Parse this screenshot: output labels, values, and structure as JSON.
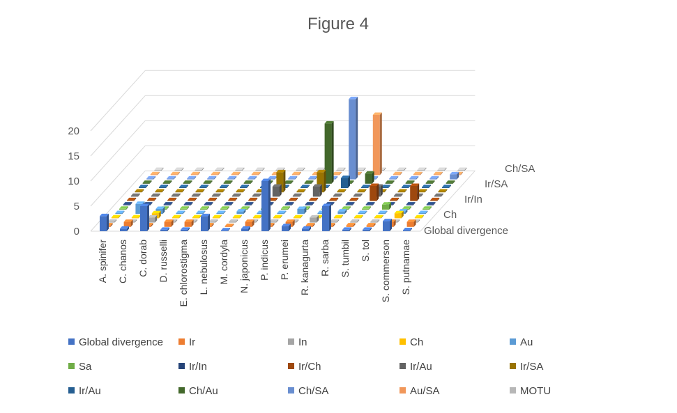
{
  "chart_data": {
    "type": "bar",
    "subtype": "3d-column",
    "title": "Figure 4",
    "categories": [
      "A. spinifer",
      "C. chanos",
      "C. dorab",
      "D. russelli",
      "E. chlorostigma",
      "L. nebulosus",
      "M. cordyla",
      "N. japonicus",
      "P. indicus",
      "P. erumei",
      "R. kanagurta",
      "R. sarba",
      "S. tumbil",
      "S. tol",
      "S. commerson",
      "S. putnamae"
    ],
    "depth_labels": [
      "Global divergence",
      "Ch",
      "Ir/In",
      "Ir/SA",
      "Ch/SA"
    ],
    "y_ticks": [
      "0",
      "5",
      "10",
      "15",
      "20"
    ],
    "ylim": [
      0,
      20
    ],
    "legend_position": "bottom",
    "series": [
      {
        "name": "Global divergence",
        "color": "#4472c4",
        "values": [
          3,
          0.5,
          5,
          0.3,
          0.3,
          3,
          0.1,
          0.5,
          10,
          1,
          0.5,
          5,
          0.3,
          0.3,
          2,
          0.2
        ]
      },
      {
        "name": "Ir",
        "color": "#ed7d31",
        "values": [
          0.3,
          1,
          0.3,
          1,
          1,
          0.3,
          0.1,
          1,
          0.3,
          1,
          0.3,
          0.3,
          0.3,
          0.3,
          1,
          1
        ]
      },
      {
        "name": "In",
        "color": "#a5a5a5",
        "values": [
          0,
          0,
          1,
          0,
          0,
          0,
          0,
          0,
          0,
          0,
          1,
          0,
          0,
          0,
          0,
          0
        ]
      },
      {
        "name": "Ch",
        "color": "#ffc000",
        "values": [
          0,
          0,
          1,
          0,
          0,
          0,
          0,
          0,
          0,
          0,
          0,
          0,
          0,
          0,
          1,
          0
        ]
      },
      {
        "name": "Au",
        "color": "#5b9bd5",
        "values": [
          0,
          2,
          1,
          0,
          0,
          0,
          0.5,
          0,
          0,
          1,
          0,
          0.5,
          0,
          0,
          0.5,
          0
        ]
      },
      {
        "name": "Sa",
        "color": "#70ad47",
        "values": [
          0,
          0,
          0,
          0,
          0,
          0,
          0,
          0,
          0,
          0,
          0,
          0,
          0,
          1,
          0,
          0
        ]
      },
      {
        "name": "Ir/In",
        "color": "#264478",
        "values": [
          0,
          0,
          0,
          0,
          0.1,
          0,
          0,
          0,
          0.1,
          0,
          0,
          0.1,
          0,
          0,
          0,
          0
        ]
      },
      {
        "name": "Ir/Ch",
        "color": "#9e480e",
        "values": [
          0,
          0,
          0,
          0,
          0,
          0,
          0,
          0,
          0,
          0,
          0,
          0,
          3,
          0,
          3,
          0
        ]
      },
      {
        "name": "Ir/Au",
        "color": "#636363",
        "values": [
          0,
          0,
          0,
          0,
          0,
          0,
          0,
          2,
          0,
          2,
          0,
          0,
          2,
          0,
          0,
          0
        ]
      },
      {
        "name": "Ir/SA",
        "color": "#997300",
        "values": [
          0,
          0,
          0,
          0,
          0,
          0,
          0,
          4,
          0,
          4,
          0,
          0,
          0,
          0,
          0,
          0
        ]
      },
      {
        "name": "Ir/Au",
        "color": "#255e91",
        "values": [
          0,
          0,
          0,
          0,
          0,
          0,
          0,
          0,
          0,
          0,
          2,
          0,
          0,
          0,
          0,
          0
        ]
      },
      {
        "name": "Ch/Au",
        "color": "#43682b",
        "values": [
          0,
          0,
          0,
          0,
          0,
          0,
          0,
          0,
          0,
          12,
          0,
          2,
          0,
          0,
          0,
          0
        ]
      },
      {
        "name": "Ch/SA",
        "color": "#698ed0",
        "values": [
          0,
          0,
          0,
          0,
          0,
          0,
          0,
          0,
          0,
          0,
          16,
          0,
          0,
          0,
          0,
          1
        ]
      },
      {
        "name": "Au/SA",
        "color": "#f1975a",
        "values": [
          0,
          0,
          0,
          0,
          0,
          0,
          0,
          0,
          0,
          0,
          0,
          12,
          0,
          0,
          0,
          0
        ]
      },
      {
        "name": "MOTU",
        "color": "#b7b7b7",
        "values": [
          0,
          0,
          0,
          0,
          0,
          0,
          0,
          0,
          0,
          0,
          0,
          0,
          0,
          0,
          0,
          0
        ]
      }
    ]
  }
}
